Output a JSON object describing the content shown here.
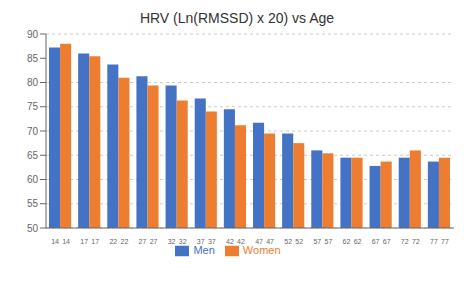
{
  "chart_data": {
    "type": "bar",
    "title": "HRV (Ln(RMSSD) x 20) vs Age",
    "categories": [
      "14",
      "17",
      "22",
      "27",
      "32",
      "37",
      "42",
      "47",
      "52",
      "57",
      "62",
      "67",
      "72",
      "77"
    ],
    "series": [
      {
        "name": "Men",
        "color": "#4472c4",
        "values": [
          87.2,
          86.0,
          83.7,
          81.3,
          79.4,
          76.7,
          74.5,
          71.7,
          69.5,
          66.0,
          64.5,
          62.8,
          64.5,
          63.7
        ]
      },
      {
        "name": "Women",
        "color": "#ed7d31",
        "values": [
          88.0,
          85.4,
          81.0,
          79.4,
          76.3,
          74.0,
          71.2,
          69.5,
          67.5,
          65.4,
          64.5,
          63.7,
          66.0,
          64.5
        ]
      }
    ],
    "ylim": [
      50,
      90
    ],
    "yticks": [
      50,
      55,
      60,
      65,
      70,
      75,
      80,
      85,
      90
    ],
    "grid": true,
    "legend": "bottom"
  }
}
